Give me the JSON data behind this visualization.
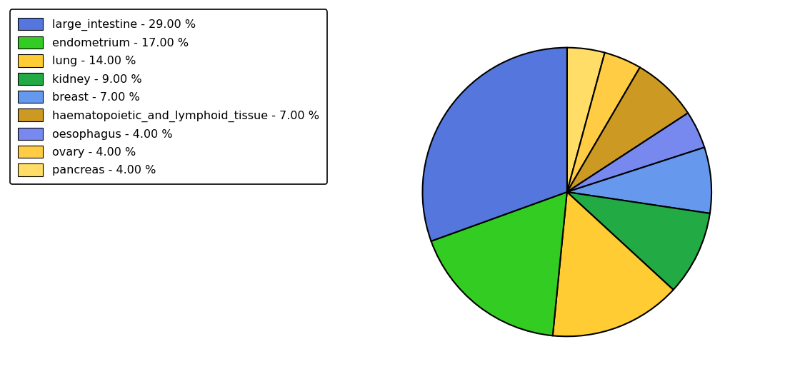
{
  "labels": [
    "large_intestine",
    "endometrium",
    "lung",
    "kidney",
    "breast",
    "haematopoietic_and_lymphoid_tissue",
    "oesophagus",
    "ovary",
    "pancreas"
  ],
  "values": [
    29,
    17,
    14,
    9,
    7,
    7,
    4,
    4,
    4
  ],
  "colors": [
    "#5577DD",
    "#33CC22",
    "#FFCC33",
    "#22AA44",
    "#6699EE",
    "#CC9922",
    "#7788EE",
    "#FFCC44",
    "#FFDD66"
  ],
  "legend_labels": [
    "large_intestine - 29.00 %",
    "endometrium - 17.00 %",
    "lung - 14.00 %",
    "kidney - 9.00 %",
    "breast - 7.00 %",
    "haematopoietic_and_lymphoid_tissue - 7.00 %",
    "oesophagus - 4.00 %",
    "ovary - 4.00 %",
    "pancreas - 4.00 %"
  ],
  "pie_order": [
    0,
    7,
    8,
    5,
    6,
    4,
    3,
    2,
    1
  ],
  "startangle": 90,
  "background_color": "#ffffff",
  "figsize": [
    11.34,
    5.38
  ],
  "dpi": 100
}
